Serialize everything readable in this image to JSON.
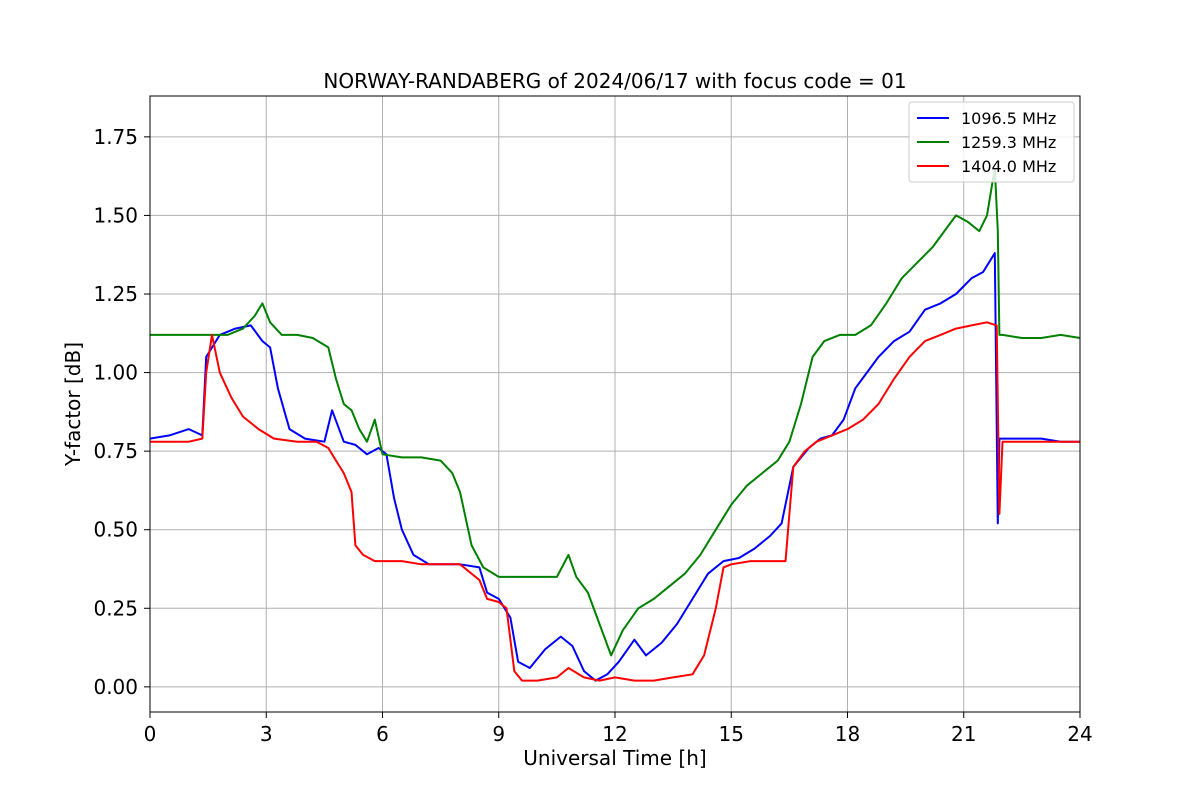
{
  "chart_data": {
    "type": "line",
    "title": "NORWAY-RANDABERG of 2024/06/17 with focus code = 01",
    "xlabel": "Universal Time [h]",
    "ylabel": "Y-factor [dB]",
    "xlim": [
      0,
      24
    ],
    "ylim": [
      -0.08,
      1.88
    ],
    "xticks": [
      0,
      3,
      6,
      9,
      12,
      15,
      18,
      21,
      24
    ],
    "xtick_labels": [
      "0",
      "3",
      "6",
      "9",
      "12",
      "15",
      "18",
      "21",
      "24"
    ],
    "yticks": [
      0.0,
      0.25,
      0.5,
      0.75,
      1.0,
      1.25,
      1.5,
      1.75
    ],
    "ytick_labels": [
      "0.00",
      "0.25",
      "0.50",
      "0.75",
      "1.00",
      "1.25",
      "1.50",
      "1.75"
    ],
    "grid": true,
    "legend_position": "top-right",
    "series": [
      {
        "name": "1096.5 MHz",
        "color": "#0000ff",
        "x": [
          0,
          0.5,
          1.0,
          1.35,
          1.45,
          1.8,
          2.2,
          2.6,
          2.9,
          3.1,
          3.3,
          3.6,
          4.0,
          4.5,
          4.7,
          5.0,
          5.3,
          5.6,
          5.9,
          6.1,
          6.3,
          6.5,
          6.8,
          7.2,
          8.0,
          8.5,
          8.7,
          9.0,
          9.3,
          9.5,
          9.8,
          10.2,
          10.6,
          10.9,
          11.2,
          11.5,
          11.8,
          12.1,
          12.5,
          12.8,
          13.2,
          13.6,
          14.0,
          14.4,
          14.8,
          15.2,
          15.6,
          16.0,
          16.3,
          16.6,
          17.0,
          17.3,
          17.6,
          17.9,
          18.2,
          18.5,
          18.8,
          19.2,
          19.6,
          20.0,
          20.4,
          20.8,
          21.2,
          21.5,
          21.8,
          21.88,
          21.92,
          22.0,
          22.5,
          23.0,
          23.5,
          24.0
        ],
        "values": [
          0.79,
          0.8,
          0.82,
          0.8,
          1.05,
          1.12,
          1.14,
          1.15,
          1.1,
          1.08,
          0.95,
          0.82,
          0.79,
          0.78,
          0.88,
          0.78,
          0.77,
          0.74,
          0.76,
          0.74,
          0.6,
          0.5,
          0.42,
          0.39,
          0.39,
          0.38,
          0.3,
          0.28,
          0.22,
          0.08,
          0.06,
          0.12,
          0.16,
          0.13,
          0.05,
          0.02,
          0.04,
          0.08,
          0.15,
          0.1,
          0.14,
          0.2,
          0.28,
          0.36,
          0.4,
          0.41,
          0.44,
          0.48,
          0.52,
          0.7,
          0.76,
          0.79,
          0.8,
          0.85,
          0.95,
          1.0,
          1.05,
          1.1,
          1.13,
          1.2,
          1.22,
          1.25,
          1.3,
          1.32,
          1.38,
          0.52,
          0.79,
          0.79,
          0.79,
          0.79,
          0.78,
          0.78
        ]
      },
      {
        "name": "1259.3 MHz",
        "color": "#008000",
        "x": [
          0,
          0.5,
          1.0,
          1.5,
          2.0,
          2.4,
          2.7,
          2.9,
          3.1,
          3.4,
          3.8,
          4.2,
          4.6,
          4.8,
          5.0,
          5.2,
          5.4,
          5.6,
          5.8,
          6.0,
          6.5,
          7.0,
          7.5,
          7.8,
          8.0,
          8.3,
          8.6,
          9.0,
          9.5,
          10.0,
          10.5,
          10.8,
          11.0,
          11.3,
          11.6,
          11.9,
          12.2,
          12.6,
          13.0,
          13.4,
          13.8,
          14.2,
          14.6,
          15.0,
          15.4,
          15.8,
          16.2,
          16.5,
          16.8,
          17.1,
          17.4,
          17.8,
          18.2,
          18.6,
          19.0,
          19.4,
          19.8,
          20.2,
          20.5,
          20.8,
          21.1,
          21.4,
          21.6,
          21.8,
          21.88,
          21.92,
          22.0,
          22.5,
          23.0,
          23.5,
          24.0
        ],
        "values": [
          1.12,
          1.12,
          1.12,
          1.12,
          1.12,
          1.14,
          1.18,
          1.22,
          1.16,
          1.12,
          1.12,
          1.11,
          1.08,
          0.98,
          0.9,
          0.88,
          0.82,
          0.78,
          0.85,
          0.74,
          0.73,
          0.73,
          0.72,
          0.68,
          0.62,
          0.45,
          0.38,
          0.35,
          0.35,
          0.35,
          0.35,
          0.42,
          0.35,
          0.3,
          0.2,
          0.1,
          0.18,
          0.25,
          0.28,
          0.32,
          0.36,
          0.42,
          0.5,
          0.58,
          0.64,
          0.68,
          0.72,
          0.78,
          0.9,
          1.05,
          1.1,
          1.12,
          1.12,
          1.15,
          1.22,
          1.3,
          1.35,
          1.4,
          1.45,
          1.5,
          1.48,
          1.45,
          1.5,
          1.65,
          1.45,
          1.12,
          1.12,
          1.11,
          1.11,
          1.12,
          1.11
        ]
      },
      {
        "name": "1404.0 MHz",
        "color": "#ff0000",
        "x": [
          0,
          0.5,
          1.0,
          1.35,
          1.45,
          1.6,
          1.8,
          2.1,
          2.4,
          2.8,
          3.2,
          3.8,
          4.3,
          4.6,
          4.8,
          5.0,
          5.2,
          5.3,
          5.5,
          5.8,
          6.0,
          6.5,
          7.0,
          7.5,
          8.0,
          8.5,
          8.7,
          9.0,
          9.2,
          9.4,
          9.6,
          10.0,
          10.5,
          10.8,
          11.2,
          11.6,
          12.0,
          12.5,
          13.0,
          13.5,
          14.0,
          14.3,
          14.6,
          14.8,
          15.0,
          15.5,
          16.0,
          16.4,
          16.6,
          16.9,
          17.2,
          17.6,
          18.0,
          18.4,
          18.8,
          19.2,
          19.6,
          20.0,
          20.4,
          20.8,
          21.2,
          21.6,
          21.85,
          21.92,
          22.0,
          22.5,
          23.0,
          23.5,
          24.0
        ],
        "values": [
          0.78,
          0.78,
          0.78,
          0.79,
          1.0,
          1.12,
          1.0,
          0.92,
          0.86,
          0.82,
          0.79,
          0.78,
          0.78,
          0.76,
          0.72,
          0.68,
          0.62,
          0.45,
          0.42,
          0.4,
          0.4,
          0.4,
          0.39,
          0.39,
          0.39,
          0.34,
          0.28,
          0.27,
          0.25,
          0.05,
          0.02,
          0.02,
          0.03,
          0.06,
          0.03,
          0.02,
          0.03,
          0.02,
          0.02,
          0.03,
          0.04,
          0.1,
          0.25,
          0.38,
          0.39,
          0.4,
          0.4,
          0.4,
          0.7,
          0.75,
          0.78,
          0.8,
          0.82,
          0.85,
          0.9,
          0.98,
          1.05,
          1.1,
          1.12,
          1.14,
          1.15,
          1.16,
          1.15,
          0.55,
          0.78,
          0.78,
          0.78,
          0.78,
          0.78
        ]
      }
    ]
  }
}
